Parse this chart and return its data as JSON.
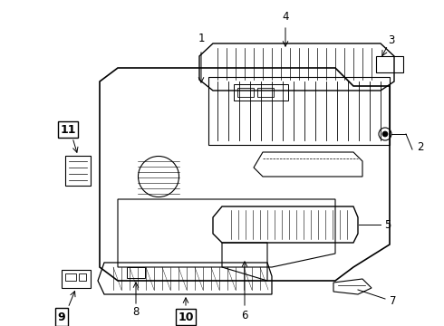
{
  "title": "",
  "background_color": "#ffffff",
  "line_color": "#000000",
  "label_color": "#000000",
  "figsize": [
    4.9,
    3.6
  ],
  "dpi": 100
}
